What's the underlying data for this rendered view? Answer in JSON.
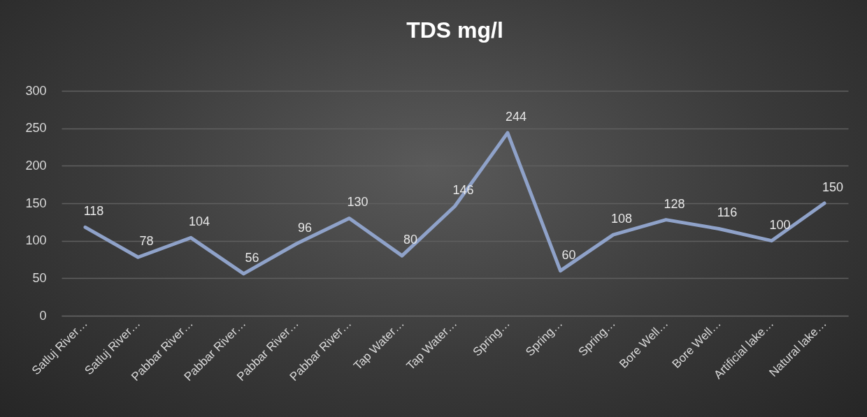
{
  "chart_data": {
    "type": "line",
    "title": "TDS mg/l",
    "categories": [
      "Satluj River…",
      "Satluj River…",
      "Pabbar River…",
      "Pabbar River…",
      "Pabbar River…",
      "Pabbar River…",
      "Tap Water…",
      "Tap Water…",
      "Spring…",
      "Spring…",
      "Spring…",
      "Bore Well…",
      "Bore Well…",
      "Artificial lake…",
      "Natural lake…"
    ],
    "series": [
      {
        "color": "#8fa2c9",
        "values": [
          118,
          78,
          104,
          56,
          96,
          130,
          80,
          146,
          244,
          60,
          108,
          128,
          116,
          100,
          150
        ]
      }
    ],
    "ylim": [
      0,
      300
    ],
    "yticks": [
      0,
      50,
      100,
      150,
      200,
      250,
      300
    ],
    "grid": "y",
    "data_labels": true,
    "marker": "none",
    "line_style": "solid"
  }
}
